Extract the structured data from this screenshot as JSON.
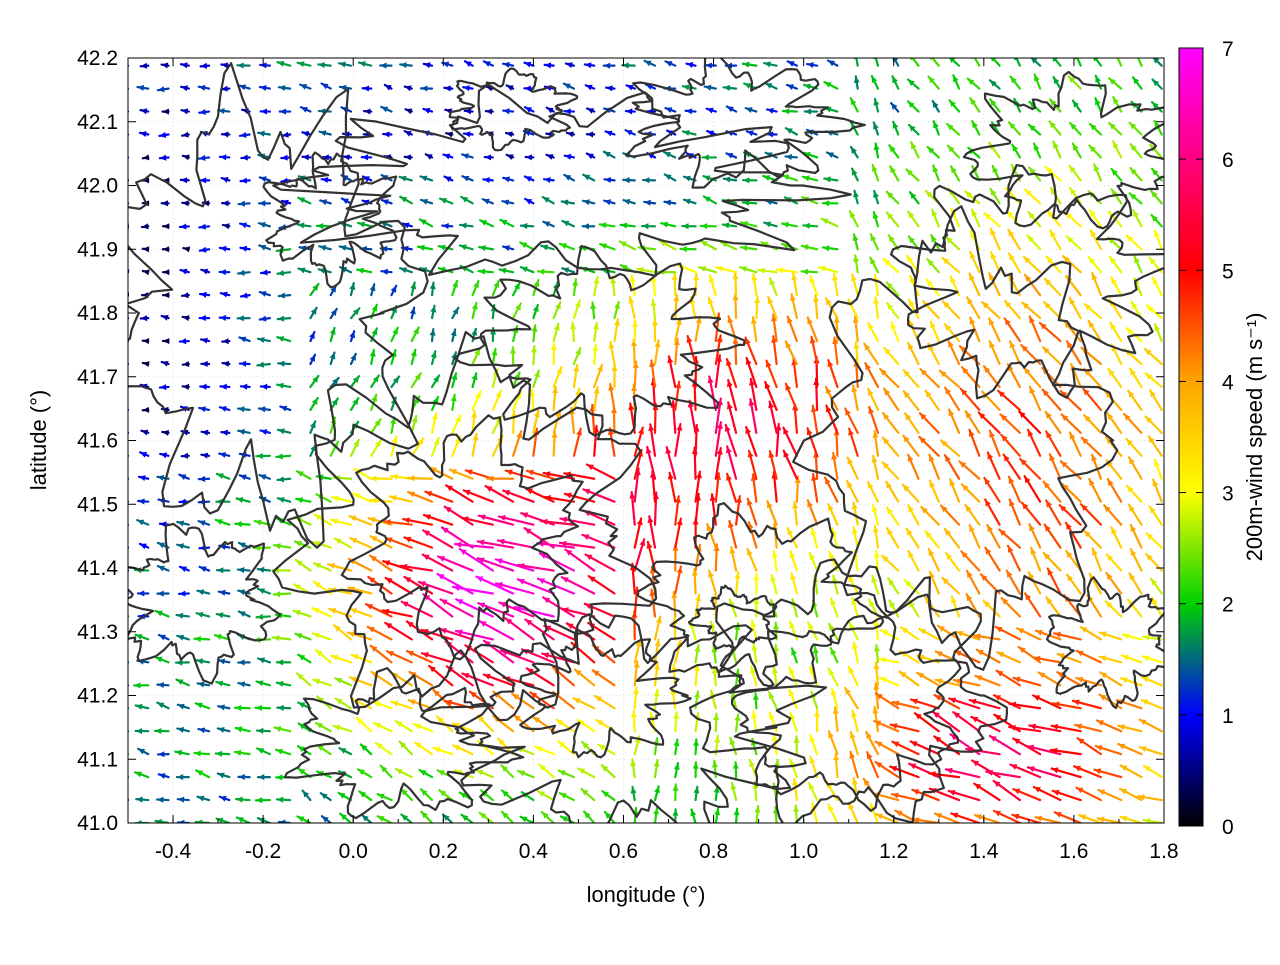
{
  "chart_data": {
    "type": "vector-field",
    "xlabel": "longitude (°)",
    "ylabel": "latitude (°)",
    "xlim": [
      -0.5,
      1.8
    ],
    "ylim": [
      41.0,
      42.2
    ],
    "xticks": [
      -0.4,
      -0.2,
      0.0,
      0.2,
      0.4,
      0.6,
      0.8,
      1.0,
      1.2,
      1.4,
      1.6,
      1.8
    ],
    "xtick_labels": [
      "-0.4",
      "-0.2",
      "0.0",
      "0.2",
      "0.4",
      "0.6",
      "0.8",
      "1.0",
      "1.2",
      "1.4",
      "1.6",
      "1.8"
    ],
    "yticks": [
      41.0,
      41.1,
      41.2,
      41.3,
      41.4,
      41.5,
      41.6,
      41.7,
      41.8,
      41.9,
      42.0,
      42.1,
      42.2
    ],
    "ytick_labels": [
      "41.0",
      "41.1",
      "41.2",
      "41.3",
      "41.4",
      "41.5",
      "41.6",
      "41.7",
      "41.8",
      "41.9",
      "42.0",
      "42.1",
      "42.2"
    ],
    "grid": true,
    "colorbar": {
      "label": "200m-wind speed (m s⁻¹)",
      "range": [
        0,
        7
      ],
      "ticks": [
        0,
        1,
        2,
        3,
        4,
        5,
        6,
        7
      ],
      "tick_labels": [
        "0",
        "1",
        "2",
        "3",
        "4",
        "5",
        "6",
        "7"
      ],
      "colors": [
        "#000000",
        "#0000ff",
        "#00d000",
        "#ffff00",
        "#ffa500",
        "#ff0000",
        "#ff00ff"
      ]
    },
    "wind_regions": [
      {
        "region": "northwest",
        "lon": [
          -0.5,
          -0.15
        ],
        "lat": [
          41.4,
          42.2
        ],
        "speed_ms": 1.0,
        "direction": "westward"
      },
      {
        "region": "north",
        "lon": [
          -0.15,
          1.1
        ],
        "lat": [
          41.85,
          42.2
        ],
        "speed_ms": 2.0,
        "direction": "westward"
      },
      {
        "region": "southwest",
        "lon": [
          -0.5,
          -0.1
        ],
        "lat": [
          41.0,
          41.4
        ],
        "speed_ms": 2.5,
        "direction": "westward"
      },
      {
        "region": "central-south",
        "lon": [
          0.0,
          0.6
        ],
        "lat": [
          41.0,
          41.55
        ],
        "speed_ms": 6.5,
        "direction": "northwestward"
      },
      {
        "region": "central",
        "lon": [
          0.5,
          1.2
        ],
        "lat": [
          41.5,
          41.85
        ],
        "speed_ms": 5.5,
        "direction": "northward"
      },
      {
        "region": "east",
        "lon": [
          1.2,
          1.8
        ],
        "lat": [
          41.3,
          42.1
        ],
        "speed_ms": 4.5,
        "direction": "northwestward"
      },
      {
        "region": "southeast",
        "lon": [
          1.0,
          1.8
        ],
        "lat": [
          41.0,
          41.3
        ],
        "speed_ms": 5.0,
        "direction": "westward"
      }
    ]
  }
}
